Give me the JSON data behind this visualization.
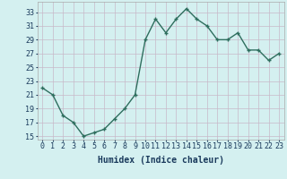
{
  "x": [
    0,
    1,
    2,
    3,
    4,
    5,
    6,
    7,
    8,
    9,
    10,
    11,
    12,
    13,
    14,
    15,
    16,
    17,
    18,
    19,
    20,
    21,
    22,
    23
  ],
  "y": [
    22,
    21,
    18,
    17,
    15,
    15.5,
    16,
    17.5,
    19,
    21,
    29,
    32,
    30,
    32,
    33.5,
    32,
    31,
    29,
    29,
    30,
    27.5,
    27.5,
    26,
    27
  ],
  "line_color": "#2e6e5e",
  "marker_color": "#2e6e5e",
  "bg_color": "#d4f0f0",
  "grid_color": "#c8b8c8",
  "xlabel": "Humidex (Indice chaleur)",
  "ylim": [
    14.5,
    34.5
  ],
  "xlim": [
    -0.5,
    23.5
  ],
  "yticks": [
    15,
    17,
    19,
    21,
    23,
    25,
    27,
    29,
    31,
    33
  ],
  "xticks": [
    0,
    1,
    2,
    3,
    4,
    5,
    6,
    7,
    8,
    9,
    10,
    11,
    12,
    13,
    14,
    15,
    16,
    17,
    18,
    19,
    20,
    21,
    22,
    23
  ],
  "font_color": "#1a3a5c",
  "xlabel_fontsize": 7,
  "tick_fontsize": 6,
  "linewidth": 1.0,
  "markersize": 3
}
